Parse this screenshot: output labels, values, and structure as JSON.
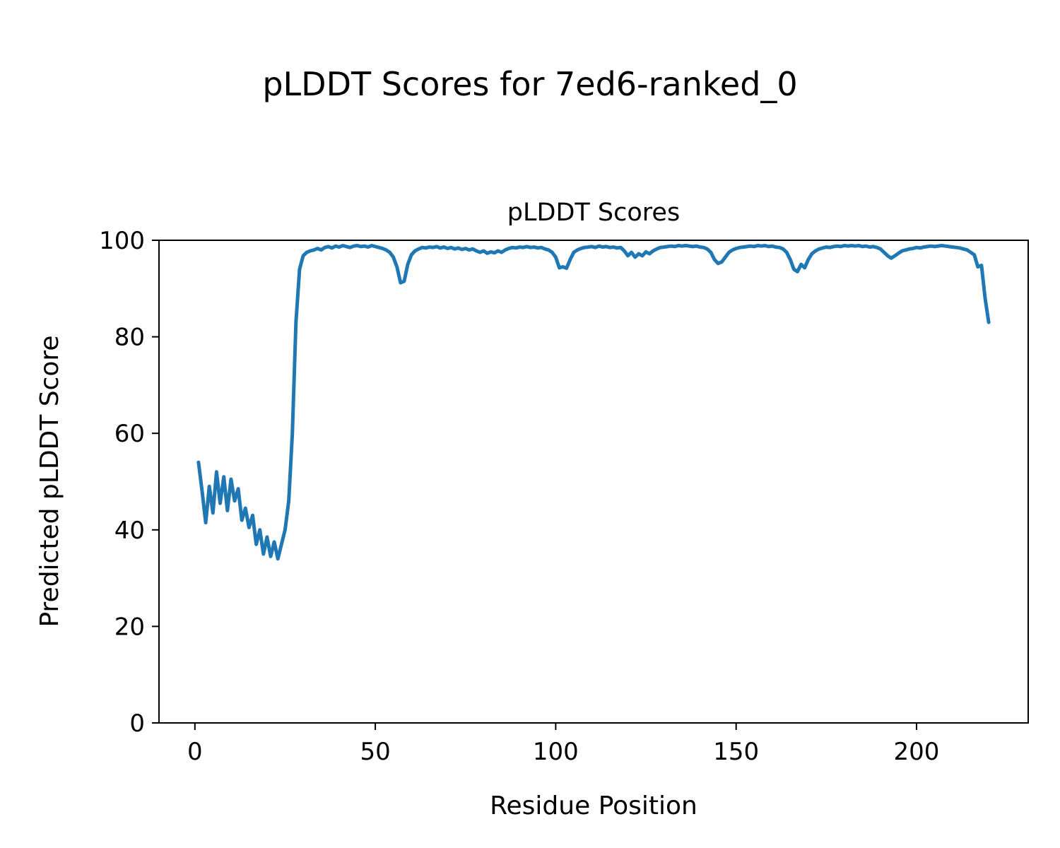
{
  "figure": {
    "suptitle": "pLDDT Scores for 7ed6-ranked_0",
    "axes_title": "pLDDT Scores",
    "xlabel": "Residue Position",
    "ylabel": "Predicted pLDDT Score"
  },
  "chart_data": {
    "type": "line",
    "title": "pLDDT Scores",
    "suptitle": "pLDDT Scores for 7ed6-ranked_0",
    "xlabel": "Residue Position",
    "ylabel": "Predicted pLDDT Score",
    "xlim": [
      -9.95,
      230.95
    ],
    "ylim": [
      0,
      100
    ],
    "xticks": [
      0,
      50,
      100,
      150,
      200
    ],
    "yticks": [
      0,
      20,
      40,
      60,
      80,
      100
    ],
    "grid": false,
    "legend": "none",
    "line_color": "#1f77b4",
    "series": [
      {
        "name": "pLDDT",
        "x_start": 1,
        "values": [
          54,
          48,
          41.5,
          49,
          43.5,
          52,
          45.5,
          51,
          44,
          50.5,
          46,
          48.5,
          42,
          44.5,
          40.5,
          43,
          37,
          40,
          35,
          38.5,
          34.5,
          37.5,
          34,
          37,
          40,
          46,
          60,
          83,
          94,
          96.8,
          97.5,
          97.8,
          98,
          98.3,
          98,
          98.5,
          98.7,
          98.4,
          98.8,
          98.6,
          98.9,
          98.7,
          98.5,
          98.8,
          98.9,
          98.7,
          98.8,
          98.6,
          98.9,
          98.7,
          98.5,
          98.3,
          98,
          97.5,
          96.5,
          94.5,
          91.2,
          91.5,
          95,
          97,
          97.8,
          98.2,
          98.5,
          98.4,
          98.6,
          98.5,
          98.7,
          98.4,
          98.6,
          98.3,
          98.5,
          98.2,
          98.4,
          98.1,
          98.3,
          98,
          98.2,
          97.8,
          97.5,
          97.8,
          97.3,
          97.6,
          97.4,
          97.8,
          97.5,
          98,
          98.3,
          98.5,
          98.4,
          98.6,
          98.5,
          98.7,
          98.5,
          98.6,
          98.4,
          98.5,
          98.2,
          98,
          97.5,
          96.5,
          94.3,
          94.5,
          94.2,
          96,
          97.5,
          98,
          98.3,
          98.5,
          98.6,
          98.7,
          98.5,
          98.8,
          98.6,
          98.7,
          98.5,
          98.6,
          98.4,
          98.5,
          97.8,
          96.8,
          97.5,
          96.5,
          97.2,
          96.8,
          97.6,
          97.2,
          97.8,
          98.2,
          98.5,
          98.6,
          98.7,
          98.8,
          98.7,
          98.9,
          98.8,
          98.9,
          98.8,
          98.7,
          98.8,
          98.6,
          98.5,
          98.2,
          97.5,
          96,
          95.2,
          95.5,
          96.5,
          97.5,
          98,
          98.3,
          98.5,
          98.6,
          98.7,
          98.8,
          98.7,
          98.9,
          98.8,
          98.9,
          98.7,
          98.8,
          98.6,
          98.5,
          98.2,
          97.5,
          96,
          94,
          93.5,
          95,
          94.3,
          96,
          97.2,
          97.8,
          98.2,
          98.4,
          98.6,
          98.5,
          98.7,
          98.8,
          98.7,
          98.9,
          98.8,
          98.9,
          98.8,
          98.9,
          98.7,
          98.8,
          98.6,
          98.7,
          98.5,
          98.2,
          97.5,
          96.8,
          96.3,
          96.8,
          97.3,
          97.8,
          98,
          98.2,
          98.3,
          98.5,
          98.4,
          98.6,
          98.7,
          98.8,
          98.7,
          98.8,
          98.9,
          98.8,
          98.7,
          98.6,
          98.5,
          98.4,
          98.2,
          98,
          97.5,
          97,
          94.5,
          94.8,
          88,
          83
        ]
      }
    ]
  }
}
